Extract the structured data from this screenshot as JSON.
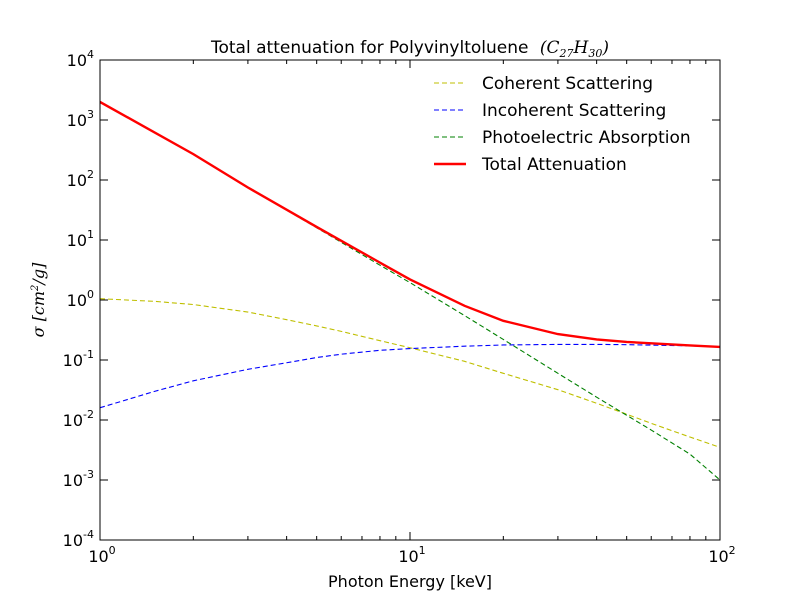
{
  "chart_data": {
    "type": "line",
    "title": "Total attenuation for Polyvinyltoluene",
    "title_formula": "(C27H30)",
    "xlabel": "Photon Energy [keV]",
    "ylabel": "σ [cm²/g]",
    "xscale": "log",
    "yscale": "log",
    "xlim": [
      1,
      100
    ],
    "ylim": [
      0.0001,
      10000
    ],
    "x_tick_labels": [
      "10^0",
      "10^1",
      "10^2"
    ],
    "y_tick_labels": [
      "10^-4",
      "10^-3",
      "10^-2",
      "10^-1",
      "10^0",
      "10^1",
      "10^2",
      "10^3",
      "10^4"
    ],
    "legend_placement": "top-right",
    "grid": false,
    "series": [
      {
        "name": "Coherent Scattering",
        "color": "#bfbf00",
        "style": "dashed",
        "x": [
          1,
          1.5,
          2,
          3,
          4,
          5,
          6,
          8,
          10,
          15,
          20,
          30,
          40,
          50,
          60,
          80,
          100
        ],
        "y": [
          1.05,
          0.95,
          0.84,
          0.63,
          0.47,
          0.37,
          0.3,
          0.21,
          0.16,
          0.095,
          0.06,
          0.032,
          0.019,
          0.0125,
          0.0088,
          0.0052,
          0.0035
        ]
      },
      {
        "name": "Incoherent Scattering",
        "color": "#0000ff",
        "style": "dashed",
        "x": [
          1,
          1.5,
          2,
          3,
          4,
          5,
          6,
          8,
          10,
          15,
          20,
          30,
          40,
          50,
          60,
          80,
          100
        ],
        "y": [
          0.016,
          0.03,
          0.045,
          0.07,
          0.09,
          0.11,
          0.125,
          0.145,
          0.155,
          0.17,
          0.178,
          0.182,
          0.182,
          0.18,
          0.177,
          0.172,
          0.165
        ]
      },
      {
        "name": "Photoelectric Absorption",
        "color": "#008000",
        "style": "dashed",
        "x": [
          1,
          2,
          3,
          5,
          8,
          10,
          15,
          20,
          30,
          40,
          50,
          60,
          80,
          100
        ],
        "y": [
          2000,
          270,
          75,
          16,
          3.8,
          1.95,
          0.55,
          0.22,
          0.06,
          0.024,
          0.012,
          0.0068,
          0.0027,
          0.001
        ]
      },
      {
        "name": "Total Attenuation",
        "color": "#ff0000",
        "style": "solid",
        "x": [
          1,
          2,
          3,
          5,
          8,
          10,
          15,
          20,
          30,
          40,
          50,
          60,
          80,
          100
        ],
        "y": [
          2000,
          270,
          75,
          16.5,
          4.2,
          2.2,
          0.8,
          0.45,
          0.27,
          0.22,
          0.2,
          0.19,
          0.175,
          0.165
        ]
      }
    ]
  }
}
